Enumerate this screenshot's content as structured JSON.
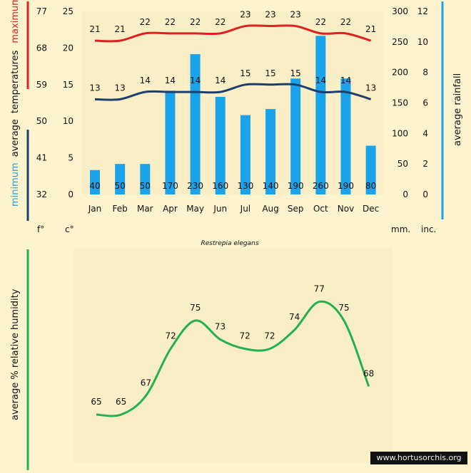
{
  "chart_data": [
    {
      "type": "bar+line",
      "title": "Restrepia elegans",
      "categories": [
        "Jan",
        "Feb",
        "Mar",
        "Apr",
        "May",
        "Jun",
        "Jul",
        "Aug",
        "Sep",
        "Oct",
        "Nov",
        "Dec"
      ],
      "rainfall": {
        "name": "average rainfall",
        "values": [
          40,
          50,
          50,
          170,
          230,
          160,
          130,
          140,
          190,
          260,
          190,
          80
        ],
        "unit_mm": "mm.",
        "unit_inch": "inc.",
        "ylim_mm": [
          0,
          300
        ],
        "ylim_inch": [
          0,
          12
        ],
        "ticks_mm": [
          0,
          50,
          100,
          150,
          200,
          250,
          300
        ],
        "ticks_inch": [
          0,
          2,
          4,
          6,
          8,
          10,
          12
        ],
        "color": "#1aa3e8"
      },
      "temp_max": {
        "name": "maximum",
        "values": [
          21,
          21,
          22,
          22,
          22,
          22,
          23,
          23,
          23,
          22,
          22,
          21
        ],
        "color": "#e02020"
      },
      "temp_min": {
        "name": "minimum",
        "values": [
          13,
          13,
          14,
          14,
          14,
          14,
          15,
          15,
          15,
          14,
          14,
          13
        ],
        "color": "#1c3f6e"
      },
      "temp_axis": {
        "label_prefix": "average",
        "label_middle": "temperatures",
        "unit_c": "c°",
        "unit_f": "f°",
        "ylim_c": [
          0,
          25
        ],
        "ticks_c": [
          0,
          5,
          10,
          15,
          20,
          25
        ],
        "ticks_f": [
          32,
          41,
          50,
          59,
          68,
          77
        ]
      }
    },
    {
      "type": "line",
      "ylabel": "average %  relative humidity",
      "categories": [
        "Jan",
        "Feb",
        "Mar",
        "Apr",
        "May",
        "Jun",
        "Jul",
        "Aug",
        "Sep",
        "Oct",
        "Nov",
        "Dec"
      ],
      "values": [
        65,
        65,
        67,
        72,
        75,
        73,
        72,
        72,
        74,
        77,
        75,
        68
      ],
      "color": "#22b14c"
    }
  ],
  "watermark": "www.hortusorchis.org"
}
